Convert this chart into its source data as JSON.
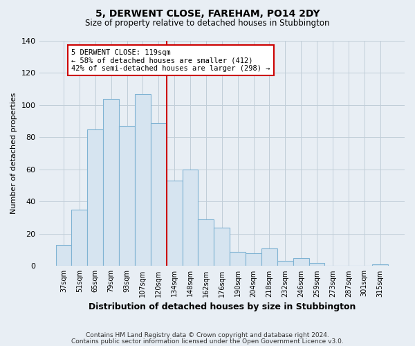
{
  "title": "5, DERWENT CLOSE, FAREHAM, PO14 2DY",
  "subtitle": "Size of property relative to detached houses in Stubbington",
  "xlabel": "Distribution of detached houses by size in Stubbington",
  "ylabel": "Number of detached properties",
  "bar_labels": [
    "37sqm",
    "51sqm",
    "65sqm",
    "79sqm",
    "93sqm",
    "107sqm",
    "120sqm",
    "134sqm",
    "148sqm",
    "162sqm",
    "176sqm",
    "190sqm",
    "204sqm",
    "218sqm",
    "232sqm",
    "246sqm",
    "259sqm",
    "273sqm",
    "287sqm",
    "301sqm",
    "315sqm"
  ],
  "bar_values": [
    13,
    35,
    85,
    104,
    87,
    107,
    89,
    53,
    60,
    29,
    24,
    9,
    8,
    11,
    3,
    5,
    2,
    0,
    0,
    0,
    1
  ],
  "bar_color": "#d6e4f0",
  "bar_edge_color": "#7fb3d3",
  "vline_index": 6,
  "vline_color": "#cc0000",
  "annotation_line1": "5 DERWENT CLOSE: 119sqm",
  "annotation_line2": "← 58% of detached houses are smaller (412)",
  "annotation_line3": "42% of semi-detached houses are larger (298) →",
  "annotation_box_color": "#ffffff",
  "annotation_box_edge": "#cc0000",
  "ylim": [
    0,
    140
  ],
  "yticks": [
    0,
    20,
    40,
    60,
    80,
    100,
    120,
    140
  ],
  "footer1": "Contains HM Land Registry data © Crown copyright and database right 2024.",
  "footer2": "Contains public sector information licensed under the Open Government Licence v3.0.",
  "background_color": "#e8eef4",
  "plot_background": "#e8eef4",
  "grid_color": "#c0cdd8"
}
